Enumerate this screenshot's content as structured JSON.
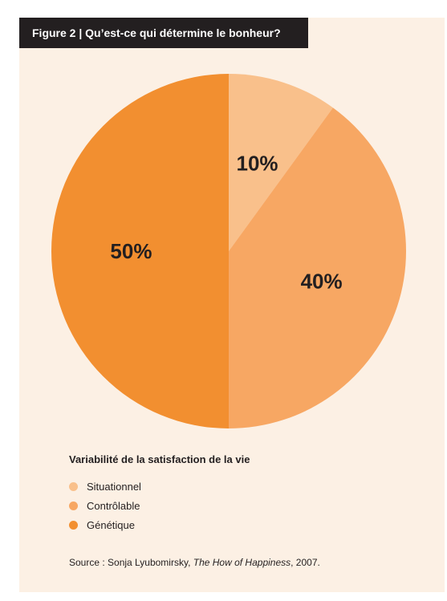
{
  "figure": {
    "label": "Figure 2 |",
    "title": "Qu’est-ce qui détermine le bonheur?"
  },
  "chart_data": {
    "type": "pie",
    "title": "Qu’est-ce qui détermine le bonheur?",
    "categories": [
      "Situationnel",
      "Contrôlable",
      "Génétique"
    ],
    "values": [
      10,
      40,
      50
    ],
    "labels": [
      "10%",
      "40%",
      "50%"
    ],
    "colors": [
      "#f9c08b",
      "#f7a763",
      "#f28f30"
    ],
    "legend_title": "Variabilité de la satisfaction de la vie",
    "legend_position": "bottom-left"
  },
  "source": {
    "prefix": "Source : Sonja Lyubomirsky, ",
    "work": "The How of Happiness",
    "suffix": ", 2007."
  },
  "colors": {
    "background": "#fcf0e4",
    "title_bar": "#231f20",
    "text": "#231f20"
  }
}
